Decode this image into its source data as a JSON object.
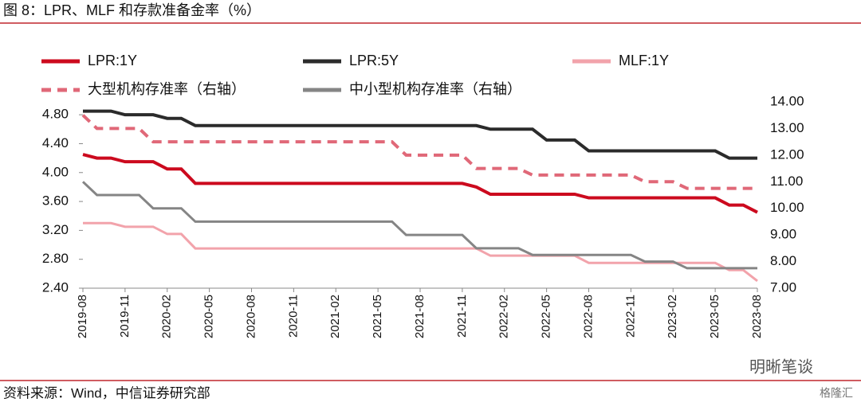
{
  "chart_data": {
    "type": "line",
    "title": "图 8：LPR、MLF 和存款准备金率（%）",
    "source": "资料来源：Wind，中信证券研究部",
    "watermarks": [
      "明晰笔谈",
      "格隆汇"
    ],
    "categories": [
      "2019-08",
      null,
      null,
      "2019-11",
      null,
      null,
      "2020-02",
      null,
      null,
      "2020-05",
      null,
      null,
      "2020-08",
      null,
      null,
      "2020-11",
      null,
      null,
      "2021-02",
      null,
      null,
      "2021-05",
      null,
      null,
      "2021-08",
      null,
      null,
      "2021-11",
      null,
      null,
      "2022-02",
      null,
      null,
      "2022-05",
      null,
      null,
      "2022-08",
      null,
      null,
      "2022-11",
      null,
      null,
      "2023-02",
      null,
      null,
      "2023-05",
      null,
      null,
      "2023-08"
    ],
    "series": [
      {
        "name": "LPR:1Y",
        "color": "#cc0a1e",
        "values": [
          4.25,
          4.2,
          4.2,
          4.15,
          4.15,
          4.15,
          4.05,
          4.05,
          3.85,
          3.85,
          3.85,
          3.85,
          3.85,
          3.85,
          3.85,
          3.85,
          3.85,
          3.85,
          3.85,
          3.85,
          3.85,
          3.85,
          3.85,
          3.85,
          3.85,
          3.85,
          3.85,
          3.85,
          3.8,
          3.7,
          3.7,
          3.7,
          3.7,
          3.7,
          3.7,
          3.7,
          3.65,
          3.65,
          3.65,
          3.65,
          3.65,
          3.65,
          3.65,
          3.65,
          3.65,
          3.65,
          3.55,
          3.55,
          3.45
        ]
      },
      {
        "name": "LPR:5Y",
        "color": "#2b2b2b",
        "values": [
          4.85,
          4.85,
          4.85,
          4.8,
          4.8,
          4.8,
          4.75,
          4.75,
          4.65,
          4.65,
          4.65,
          4.65,
          4.65,
          4.65,
          4.65,
          4.65,
          4.65,
          4.65,
          4.65,
          4.65,
          4.65,
          4.65,
          4.65,
          4.65,
          4.65,
          4.65,
          4.65,
          4.65,
          4.65,
          4.6,
          4.6,
          4.6,
          4.6,
          4.45,
          4.45,
          4.45,
          4.3,
          4.3,
          4.3,
          4.3,
          4.3,
          4.3,
          4.3,
          4.3,
          4.3,
          4.3,
          4.2,
          4.2,
          4.2
        ]
      },
      {
        "name": "MLF:1Y",
        "color": "#f2a3ab",
        "values": [
          3.3,
          3.3,
          3.3,
          3.25,
          3.25,
          3.25,
          3.15,
          3.15,
          2.95,
          2.95,
          2.95,
          2.95,
          2.95,
          2.95,
          2.95,
          2.95,
          2.95,
          2.95,
          2.95,
          2.95,
          2.95,
          2.95,
          2.95,
          2.95,
          2.95,
          2.95,
          2.95,
          2.95,
          2.95,
          2.85,
          2.85,
          2.85,
          2.85,
          2.85,
          2.85,
          2.85,
          2.75,
          2.75,
          2.75,
          2.75,
          2.75,
          2.75,
          2.75,
          2.75,
          2.75,
          2.75,
          2.65,
          2.65,
          2.5
        ]
      },
      {
        "name": "大型机构存准率（右轴）",
        "color": "#e06878",
        "dashed": true,
        "axis": "y2",
        "values": [
          13.5,
          13,
          13,
          13,
          13,
          12.5,
          12.5,
          12.5,
          12.5,
          12.5,
          12.5,
          12.5,
          12.5,
          12.5,
          12.5,
          12.5,
          12.5,
          12.5,
          12.5,
          12.5,
          12.5,
          12.5,
          12.5,
          12,
          12,
          12,
          12,
          12,
          11.5,
          11.5,
          11.5,
          11.5,
          11.25,
          11.25,
          11.25,
          11.25,
          11.25,
          11.25,
          11.25,
          11.25,
          11,
          11,
          11,
          10.75,
          10.75,
          10.75,
          10.75,
          10.75,
          10.75
        ]
      },
      {
        "name": "中小型机构存准率（右轴）",
        "color": "#858585",
        "axis": "y2",
        "values": [
          11,
          10.5,
          10.5,
          10.5,
          10.5,
          10,
          10,
          10,
          9.5,
          9.5,
          9.5,
          9.5,
          9.5,
          9.5,
          9.5,
          9.5,
          9.5,
          9.5,
          9.5,
          9.5,
          9.5,
          9.5,
          9.5,
          9,
          9,
          9,
          9,
          9,
          8.5,
          8.5,
          8.5,
          8.5,
          8.25,
          8.25,
          8.25,
          8.25,
          8.25,
          8.25,
          8.25,
          8.25,
          8,
          8,
          8,
          7.75,
          7.75,
          7.75,
          7.75,
          7.75,
          7.75
        ]
      }
    ],
    "ylim": [
      2.4,
      5.0
    ],
    "yticks": [
      {
        "value": 2.4,
        "label": "2.40"
      },
      {
        "value": 2.8,
        "label": "2.80"
      },
      {
        "value": 3.2,
        "label": "3.20"
      },
      {
        "value": 3.6,
        "label": "3.60"
      },
      {
        "value": 4.0,
        "label": "4.00"
      },
      {
        "value": 4.4,
        "label": "4.40"
      },
      {
        "value": 4.8,
        "label": "4.80"
      }
    ],
    "y2lim": [
      7,
      14.06
    ],
    "y2ticks": [
      {
        "value": 7,
        "label": "7.00"
      },
      {
        "value": 8,
        "label": "8.00"
      },
      {
        "value": 9,
        "label": "9.00"
      },
      {
        "value": 10,
        "label": "10.00"
      },
      {
        "value": 11,
        "label": "11.00"
      },
      {
        "value": 12,
        "label": "12.00"
      },
      {
        "value": 13,
        "label": "13.00"
      },
      {
        "value": 14,
        "label": "14.00"
      }
    ]
  }
}
